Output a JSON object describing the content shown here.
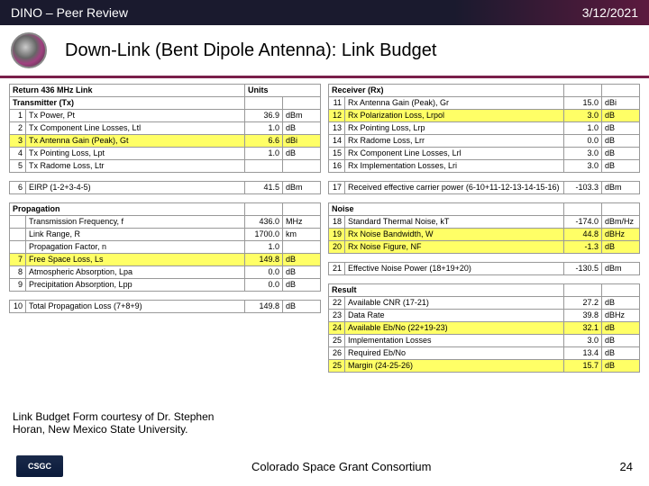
{
  "header": {
    "left": "DINO – Peer Review",
    "right": "3/12/2021"
  },
  "title": "Down-Link (Bent Dipole Antenna):  Link Budget",
  "left_table": {
    "top_header": "Return 436 MHz Link",
    "units_header": "Units",
    "tx_header": "Transmitter (Tx)",
    "tx_rows": [
      {
        "n": "1",
        "label": "Tx Power, Pt",
        "v": "36.9",
        "u": "dBm",
        "hl": false
      },
      {
        "n": "2",
        "label": "Tx Component Line Losses, Ltl",
        "v": "1.0",
        "u": "dB",
        "hl": false
      },
      {
        "n": "3",
        "label": "Tx Antenna Gain (Peak), Gt",
        "v": "6.6",
        "u": "dBi",
        "hl": true
      },
      {
        "n": "4",
        "label": "Tx Pointing Loss, Lpt",
        "v": "1.0",
        "u": "dB",
        "hl": false
      },
      {
        "n": "5",
        "label": "Tx Radome Loss, Ltr",
        "v": "",
        "u": "",
        "hl": false
      }
    ],
    "eirp": {
      "n": "6",
      "label": "EIRP (1-2+3-4-5)",
      "v": "41.5",
      "u": "dBm"
    },
    "prop_header": "Propagation",
    "prop_rows": [
      {
        "n": "",
        "label": "Transmission Frequency, f",
        "v": "436.0",
        "u": "MHz",
        "hl": false
      },
      {
        "n": "",
        "label": "Link Range, R",
        "v": "1700.0",
        "u": "km",
        "hl": false
      },
      {
        "n": "",
        "label": "Propagation Factor, n",
        "v": "1.0",
        "u": "",
        "hl": false
      },
      {
        "n": "7",
        "label": "Free Space Loss, Ls",
        "v": "149.8",
        "u": "dB",
        "hl": true
      },
      {
        "n": "8",
        "label": "Atmospheric Absorption, Lpa",
        "v": "0.0",
        "u": "dB",
        "hl": false
      },
      {
        "n": "9",
        "label": "Precipitation Absorption, Lpp",
        "v": "0.0",
        "u": "dB",
        "hl": false
      }
    ],
    "total_prop": {
      "n": "10",
      "label": "Total Propagation Loss (7+8+9)",
      "v": "149.8",
      "u": "dB"
    }
  },
  "right_table": {
    "rx_header": "Receiver (Rx)",
    "rx_rows": [
      {
        "n": "11",
        "label": "Rx Antenna Gain (Peak), Gr",
        "v": "15.0",
        "u": "dBi",
        "hl": false
      },
      {
        "n": "12",
        "label": "Rx Polarization Loss, Lrpol",
        "v": "3.0",
        "u": "dB",
        "hl": true
      },
      {
        "n": "13",
        "label": "Rx Pointing Loss, Lrp",
        "v": "1.0",
        "u": "dB",
        "hl": false
      },
      {
        "n": "14",
        "label": "Rx Radome Loss, Lrr",
        "v": "0.0",
        "u": "dB",
        "hl": false
      },
      {
        "n": "15",
        "label": "Rx Component Line Losses, Lrl",
        "v": "3.0",
        "u": "dB",
        "hl": false
      },
      {
        "n": "16",
        "label": "Rx Implementation Losses, Lri",
        "v": "3.0",
        "u": "dB",
        "hl": false
      }
    ],
    "recv_power": {
      "n": "17",
      "label": "Received effective carrier power (6-10+11-12-13-14-15-16)",
      "v": "-103.3",
      "u": "dBm"
    },
    "noise_header": "Noise",
    "noise_rows": [
      {
        "n": "18",
        "label": "Standard Thermal Noise, kT",
        "v": "-174.0",
        "u": "dBm/Hz",
        "hl": false
      },
      {
        "n": "19",
        "label": "Rx Noise Bandwidth, W",
        "v": "44.8",
        "u": "dBHz",
        "hl": true
      },
      {
        "n": "20",
        "label": "Rx Noise Figure, NF",
        "v": "-1.3",
        "u": "dB",
        "hl": true
      }
    ],
    "eff_noise": {
      "n": "21",
      "label": "Effective Noise Power (18+19+20)",
      "v": "-130.5",
      "u": "dBm"
    },
    "result_header": "Result",
    "result_rows": [
      {
        "n": "22",
        "label": "Available CNR (17-21)",
        "v": "27.2",
        "u": "dB",
        "hl": false
      },
      {
        "n": "23",
        "label": "Data Rate",
        "v": "39.8",
        "u": "dBHz",
        "hl": false
      },
      {
        "n": "24",
        "label": "Available Eb/No (22+19-23)",
        "v": "32.1",
        "u": "dB",
        "hl": true
      },
      {
        "n": "25",
        "label": "Implementation Losses",
        "v": "3.0",
        "u": "dB",
        "hl": false
      },
      {
        "n": "26",
        "label": "Required Eb/No",
        "v": "13.4",
        "u": "dB",
        "hl": false
      },
      {
        "n": "25",
        "label": "Margin (24-25-26)",
        "v": "15.7",
        "u": "dB",
        "hl": true
      }
    ]
  },
  "credit": "Link Budget Form courtesy of Dr. Stephen Horan, New Mexico State University.",
  "footer": {
    "logo": "CSGC",
    "center": "Colorado Space Grant Consortium",
    "page": "24"
  }
}
